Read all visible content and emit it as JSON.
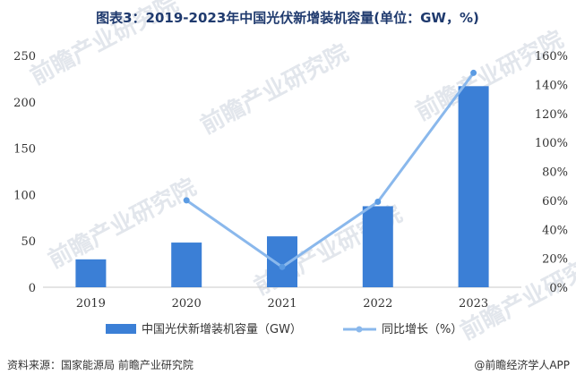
{
  "chart_data": {
    "type": "bar",
    "title": "图表3：2019-2023年中国光伏新增装机容量(单位：GW，%)",
    "categories": [
      "2019",
      "2020",
      "2021",
      "2022",
      "2023"
    ],
    "series": [
      {
        "name": "中国光伏新增装机容量（GW）",
        "type": "bar",
        "axis": "left",
        "values": [
          30.1,
          48.2,
          54.9,
          87.4,
          216.9
        ],
        "color": "#3b7fd6"
      },
      {
        "name": "同比增长（%）",
        "type": "line",
        "axis": "right",
        "values": [
          null,
          60,
          14,
          59,
          148
        ],
        "color": "#8ab8ec"
      }
    ],
    "y_left": {
      "lim": [
        0,
        250
      ],
      "ticks": [
        "0",
        "50",
        "100",
        "150",
        "200",
        "250"
      ]
    },
    "y_right": {
      "lim": [
        0,
        160
      ],
      "ticks": [
        "0%",
        "20%",
        "40%",
        "60%",
        "80%",
        "100%",
        "120%",
        "140%",
        "160%"
      ]
    },
    "grid": false,
    "legend_position": "bottom"
  },
  "footer": {
    "source": "资料来源：国家能源局 前瞻产业研究院",
    "brand": "@前瞻经济学人APP"
  },
  "watermark": "前瞻产业研究院"
}
